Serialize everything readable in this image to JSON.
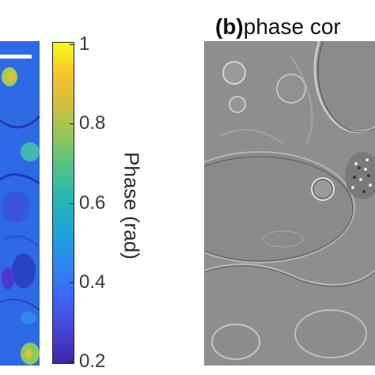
{
  "panel_a": {
    "colorbar": {
      "label": "Phase (rad)",
      "ticks": [
        {
          "label": "1",
          "value": 1.0
        },
        {
          "label": "0.8",
          "value": 0.8
        },
        {
          "label": "0.6",
          "value": 0.6
        },
        {
          "label": "0.4",
          "value": 0.4
        },
        {
          "label": "0.2",
          "value": 0.2
        }
      ],
      "range": [
        0.2,
        1.0
      ],
      "colormap": "parula"
    }
  },
  "panel_b": {
    "letter": "(b)",
    "title": "phase cor"
  },
  "colors": {
    "background": "#ffffff",
    "grey_image": "#8e8e8e"
  }
}
